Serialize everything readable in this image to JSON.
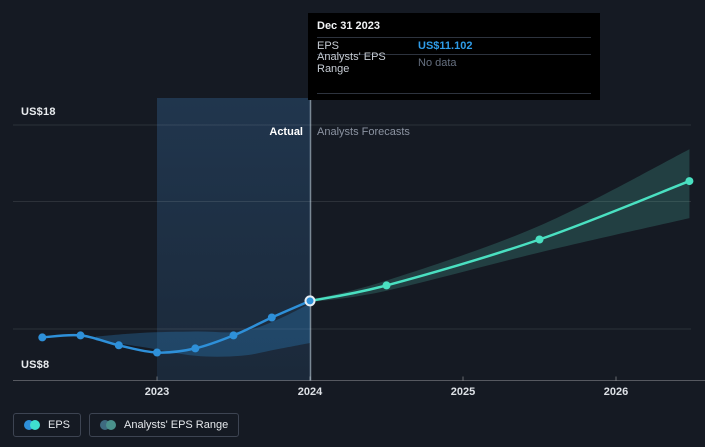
{
  "labels": {
    "actual": "Actual",
    "forecast": "Analysts Forecasts",
    "y_axis_top": "US$18",
    "y_axis_bottom": "US$8"
  },
  "tooltip": {
    "date": "Dec 31 2023",
    "rows": [
      {
        "label": "EPS",
        "value": "US$11.102",
        "style": "blue"
      },
      {
        "label": "Analysts' EPS Range",
        "value": "No data",
        "style": "muted"
      }
    ]
  },
  "legend": [
    {
      "id": "eps",
      "label": "EPS",
      "dot_colors": [
        "#2e90d9",
        "#3fe0cf"
      ]
    },
    {
      "id": "range",
      "label": "Analysts' EPS Range",
      "dot_colors": [
        "#3e6a80",
        "#4a918c"
      ]
    }
  ],
  "colors": {
    "background": "#151a23",
    "eps_line": "#2e90d9",
    "forecast_line": "#4ae0c1",
    "actual_band": "rgba(47,144,217,0.28)",
    "forecast_band": "rgba(90,215,188,0.20)",
    "highlight_top": "rgba(58,118,176,0.30)",
    "highlight_bottom": "rgba(58,118,176,0.16)",
    "divider": "rgba(205,228,242,0.55)",
    "grid": "rgba(255,255,255,0.10)",
    "axis": "rgba(255,255,255,0.28)",
    "tick": "rgba(255,255,255,0.35)",
    "marker_ring": "#e6eef4",
    "value_blue": "#2f9ce8"
  },
  "chart_data": {
    "type": "line",
    "y_min": 8,
    "y_max": 18,
    "y_gridline_values": [
      18,
      15,
      10
    ],
    "x_ticks": [
      {
        "t": 2023,
        "label": "2023"
      },
      {
        "t": 2024,
        "label": "2024"
      },
      {
        "t": 2025,
        "label": "2025"
      },
      {
        "t": 2026,
        "label": "2026"
      }
    ],
    "divider_t": 2024,
    "highlight_span": [
      2023,
      2024
    ],
    "series": [
      {
        "name": "EPS",
        "kind": "actual",
        "points": [
          {
            "t": 2022.25,
            "value": 9.67
          },
          {
            "t": 2022.5,
            "value": 9.75
          },
          {
            "t": 2022.75,
            "value": 9.36
          },
          {
            "t": 2023.0,
            "value": 9.08
          },
          {
            "t": 2023.25,
            "value": 9.24
          },
          {
            "t": 2023.5,
            "value": 9.75
          },
          {
            "t": 2023.75,
            "value": 10.45
          },
          {
            "t": 2024.0,
            "value": 11.102,
            "date": "Dec 31 2023",
            "highlighted": true
          }
        ]
      },
      {
        "name": "EPS Forecast",
        "kind": "forecast",
        "points": [
          {
            "t": 2024.0,
            "value": 11.102
          },
          {
            "t": 2024.5,
            "value": 11.71
          },
          {
            "t": 2025.5,
            "value": 13.51
          },
          {
            "t": 2026.48,
            "value": 15.8
          }
        ]
      }
    ],
    "bands": [
      {
        "name": "Analysts' EPS Range (past)",
        "kind": "actual",
        "points": [
          {
            "t": 2022.6,
            "high": 9.7,
            "low": 9.55
          },
          {
            "t": 2022.9,
            "high": 9.85,
            "low": 9.3
          },
          {
            "t": 2023.25,
            "high": 9.9,
            "low": 8.95
          },
          {
            "t": 2023.55,
            "high": 9.9,
            "low": 8.95
          },
          {
            "t": 2023.78,
            "high": 10.35,
            "low": 9.2
          },
          {
            "t": 2024.0,
            "high": 11.0,
            "low": 9.45
          }
        ]
      },
      {
        "name": "Analysts' EPS Range (forecast)",
        "kind": "forecast",
        "points": [
          {
            "t": 2024.0,
            "high": 11.15,
            "low": 11.05
          },
          {
            "t": 2024.5,
            "high": 11.9,
            "low": 11.5
          },
          {
            "t": 2025.5,
            "high": 14.05,
            "low": 13.0
          },
          {
            "t": 2026.48,
            "high": 17.05,
            "low": 14.35
          }
        ]
      }
    ]
  }
}
